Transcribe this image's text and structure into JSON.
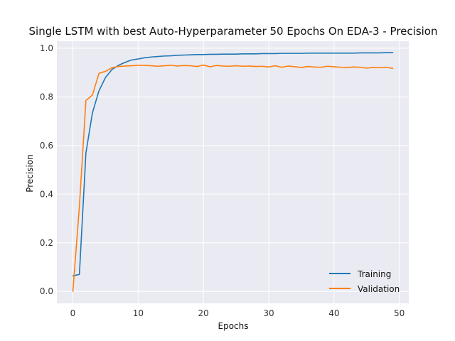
{
  "chart_data": {
    "type": "line",
    "title": "Single LSTM with best Auto-Hyperparameter 50 Epochs On EDA-3 - Precision",
    "xlabel": "Epochs",
    "ylabel": "Precision",
    "xlim": [
      -2.45,
      51.45
    ],
    "ylim": [
      -0.049,
      1.029
    ],
    "xticks": [
      0,
      10,
      20,
      30,
      40,
      50
    ],
    "xtick_labels": [
      "0",
      "10",
      "20",
      "30",
      "40",
      "50"
    ],
    "yticks": [
      0.0,
      0.2,
      0.4,
      0.6,
      0.8,
      1.0
    ],
    "ytick_labels": [
      "0.0",
      "0.2",
      "0.4",
      "0.6",
      "0.8",
      "1.0"
    ],
    "grid": true,
    "legend_position": "lower-right",
    "x": [
      0,
      1,
      2,
      3,
      4,
      5,
      6,
      7,
      8,
      9,
      10,
      11,
      12,
      13,
      14,
      15,
      16,
      17,
      18,
      19,
      20,
      21,
      22,
      23,
      24,
      25,
      26,
      27,
      28,
      29,
      30,
      31,
      32,
      33,
      34,
      35,
      36,
      37,
      38,
      39,
      40,
      41,
      42,
      43,
      44,
      45,
      46,
      47,
      48,
      49
    ],
    "series": [
      {
        "name": "Training",
        "color": "#1f77b4",
        "values": [
          0.064,
          0.07,
          0.57,
          0.735,
          0.825,
          0.88,
          0.913,
          0.93,
          0.942,
          0.952,
          0.956,
          0.961,
          0.964,
          0.966,
          0.968,
          0.969,
          0.971,
          0.972,
          0.973,
          0.974,
          0.974,
          0.975,
          0.975,
          0.976,
          0.976,
          0.976,
          0.977,
          0.977,
          0.977,
          0.978,
          0.978,
          0.978,
          0.979,
          0.979,
          0.979,
          0.979,
          0.98,
          0.98,
          0.98,
          0.98,
          0.98,
          0.98,
          0.98,
          0.98,
          0.981,
          0.981,
          0.981,
          0.981,
          0.982,
          0.982
        ]
      },
      {
        "name": "Validation",
        "color": "#ff7f0e",
        "values": [
          0.0,
          0.35,
          0.785,
          0.808,
          0.897,
          0.905,
          0.92,
          0.925,
          0.927,
          0.928,
          0.93,
          0.93,
          0.928,
          0.926,
          0.928,
          0.93,
          0.927,
          0.929,
          0.928,
          0.925,
          0.931,
          0.924,
          0.929,
          0.927,
          0.926,
          0.928,
          0.926,
          0.927,
          0.925,
          0.926,
          0.923,
          0.928,
          0.922,
          0.927,
          0.924,
          0.921,
          0.925,
          0.923,
          0.922,
          0.926,
          0.924,
          0.922,
          0.921,
          0.923,
          0.922,
          0.918,
          0.921,
          0.92,
          0.922,
          0.917
        ]
      }
    ]
  },
  "colors": {
    "plot_background": "#eaeaf2",
    "grid": "#ffffff",
    "training": "#1f77b4",
    "validation": "#ff7f0e"
  }
}
